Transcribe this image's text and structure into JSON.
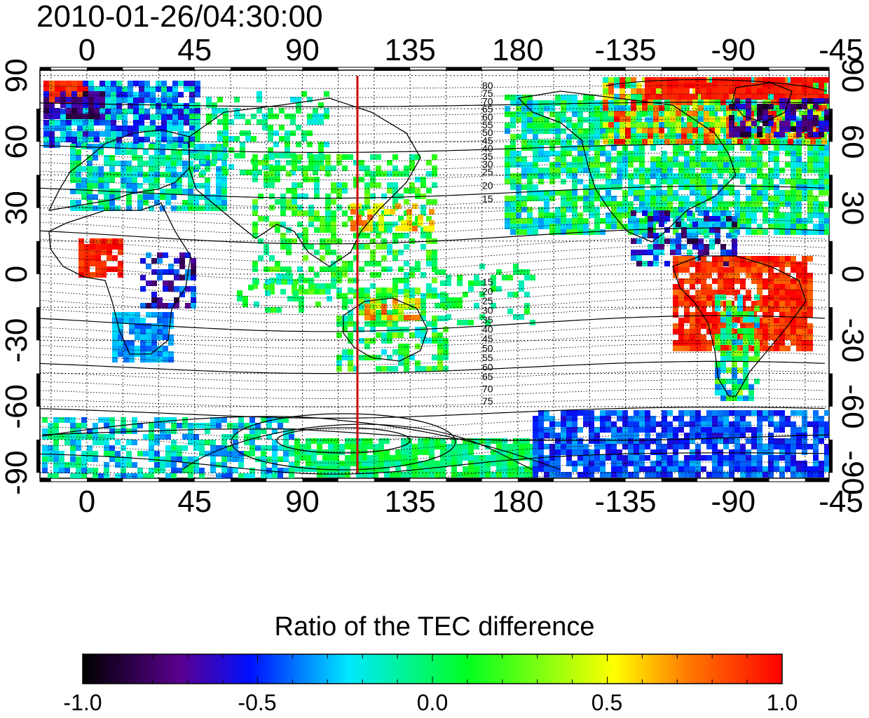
{
  "title": "2010-01-26/04:30:00",
  "map": {
    "lon_ticks": [
      "0",
      "45",
      "90",
      "135",
      "180",
      "-135",
      "-90",
      "-45"
    ],
    "lat_ticks": [
      "90",
      "60",
      "30",
      "0",
      "-30",
      "-60",
      "-90"
    ],
    "contour_labels_north": [
      "80",
      "75",
      "70",
      "65",
      "60",
      "55",
      "50",
      "45",
      "40",
      "35",
      "30",
      "25",
      "20",
      "15"
    ],
    "contour_labels_south": [
      "15",
      "20",
      "25",
      "30",
      "35",
      "40",
      "45",
      "50",
      "55",
      "60",
      "65",
      "70",
      "75"
    ],
    "terminator_longitude": 113,
    "terminator_color": "#cc0000"
  },
  "colorbar": {
    "title": "Ratio of the TEC difference",
    "ticks": [
      "-1.0",
      "-0.5",
      "0.0",
      "0.5",
      "1.0"
    ],
    "range": [
      -1.0,
      1.0
    ],
    "colors": [
      "#000000",
      "#5a0090",
      "#0010ff",
      "#00e8ff",
      "#00ff20",
      "#ffff00",
      "#ff8000",
      "#ff0000"
    ]
  }
}
